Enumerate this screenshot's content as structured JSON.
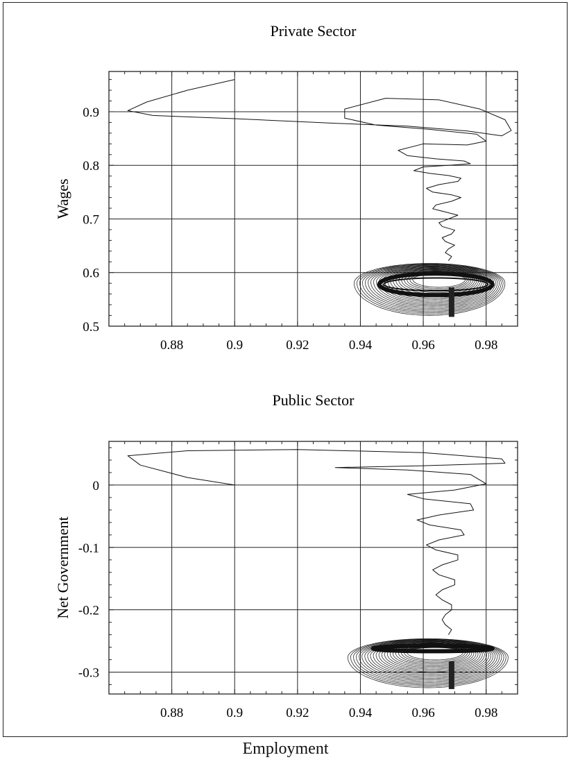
{
  "figure": {
    "xlabel": "Employment"
  },
  "chart_data": [
    {
      "type": "line",
      "title": "Private Sector",
      "xlabel": "Employment",
      "ylabel": "Wages",
      "xlim": [
        0.86,
        0.99
      ],
      "ylim": [
        0.5,
        0.975
      ],
      "xticks": [
        0.88,
        0.9,
        0.92,
        0.94,
        0.96,
        0.98
      ],
      "xtick_labels": [
        "0.88",
        "0.9",
        "0.92",
        "0.94",
        "0.96",
        "0.98"
      ],
      "yticks": [
        0.5,
        0.6,
        0.7,
        0.8,
        0.9
      ],
      "ytick_labels": [
        "0.5",
        "0.6",
        "0.7",
        "0.8",
        "0.9"
      ],
      "grid": true,
      "series": [
        {
          "values": [
            [
              0.9,
              0.96
            ],
            [
              0.885,
              0.94
            ],
            [
              0.872,
              0.918
            ],
            [
              0.866,
              0.902
            ],
            [
              0.874,
              0.893
            ],
            [
              0.9,
              0.887
            ],
            [
              0.93,
              0.879
            ],
            [
              0.955,
              0.873
            ],
            [
              0.974,
              0.864
            ],
            [
              0.985,
              0.855
            ],
            [
              0.988,
              0.865
            ],
            [
              0.986,
              0.885
            ],
            [
              0.978,
              0.905
            ],
            [
              0.965,
              0.922
            ],
            [
              0.948,
              0.925
            ],
            [
              0.935,
              0.905
            ],
            [
              0.935,
              0.888
            ],
            [
              0.945,
              0.875
            ],
            [
              0.962,
              0.867
            ],
            [
              0.977,
              0.858
            ],
            [
              0.98,
              0.845
            ],
            [
              0.974,
              0.838
            ],
            [
              0.96,
              0.84
            ],
            [
              0.952,
              0.828
            ],
            [
              0.955,
              0.818
            ],
            [
              0.964,
              0.812
            ],
            [
              0.973,
              0.808
            ],
            [
              0.975,
              0.803
            ],
            [
              0.968,
              0.8
            ],
            [
              0.96,
              0.797
            ],
            [
              0.957,
              0.79
            ],
            [
              0.962,
              0.785
            ],
            [
              0.968,
              0.781
            ],
            [
              0.972,
              0.776
            ],
            [
              0.971,
              0.77
            ],
            [
              0.965,
              0.764
            ],
            [
              0.961,
              0.757
            ],
            [
              0.963,
              0.75
            ],
            [
              0.969,
              0.745
            ],
            [
              0.972,
              0.74
            ],
            [
              0.969,
              0.733
            ],
            [
              0.964,
              0.726
            ],
            [
              0.963,
              0.719
            ],
            [
              0.967,
              0.713
            ],
            [
              0.971,
              0.707
            ],
            [
              0.968,
              0.7
            ],
            [
              0.965,
              0.693
            ],
            [
              0.966,
              0.686
            ],
            [
              0.97,
              0.679
            ],
            [
              0.969,
              0.672
            ],
            [
              0.966,
              0.665
            ],
            [
              0.967,
              0.658
            ],
            [
              0.97,
              0.651
            ],
            [
              0.968,
              0.644
            ],
            [
              0.967,
              0.637
            ],
            [
              0.969,
              0.63
            ],
            [
              0.968,
              0.622
            ]
          ]
        }
      ],
      "attractor": {
        "center": [
          0.968,
          0.578
        ],
        "x_range": [
          0.938,
          0.986
        ],
        "y_range": [
          0.52,
          0.625
        ]
      },
      "inner_cycle": {
        "x_range": [
          0.946,
          0.982
        ],
        "y_range": [
          0.558,
          0.598
        ]
      }
    },
    {
      "type": "line",
      "title": "Public Sector",
      "xlabel": "Employment",
      "ylabel": "Net Government",
      "xlim": [
        0.86,
        0.99
      ],
      "ylim": [
        -0.335,
        0.07
      ],
      "xticks": [
        0.88,
        0.9,
        0.92,
        0.94,
        0.96,
        0.98
      ],
      "xtick_labels": [
        "0.88",
        "0.9",
        "0.92",
        "0.94",
        "0.96",
        "0.98"
      ],
      "yticks": [
        0,
        -0.1,
        -0.2,
        -0.3
      ],
      "ytick_labels": [
        "0",
        "-0.1",
        "-0.2",
        "-0.3"
      ],
      "grid": true,
      "series": [
        {
          "values": [
            [
              0.9,
              0.0
            ],
            [
              0.885,
              0.012
            ],
            [
              0.87,
              0.032
            ],
            [
              0.866,
              0.047
            ],
            [
              0.885,
              0.055
            ],
            [
              0.92,
              0.057
            ],
            [
              0.96,
              0.052
            ],
            [
              0.985,
              0.042
            ],
            [
              0.986,
              0.035
            ],
            [
              0.96,
              0.031
            ],
            [
              0.932,
              0.028
            ],
            [
              0.955,
              0.024
            ],
            [
              0.975,
              0.017
            ],
            [
              0.98,
              0.002
            ],
            [
              0.97,
              -0.008
            ],
            [
              0.955,
              -0.015
            ],
            [
              0.96,
              -0.022
            ],
            [
              0.975,
              -0.03
            ],
            [
              0.976,
              -0.04
            ],
            [
              0.965,
              -0.048
            ],
            [
              0.958,
              -0.056
            ],
            [
              0.962,
              -0.064
            ],
            [
              0.972,
              -0.072
            ],
            [
              0.973,
              -0.08
            ],
            [
              0.965,
              -0.088
            ],
            [
              0.961,
              -0.096
            ],
            [
              0.964,
              -0.104
            ],
            [
              0.971,
              -0.112
            ],
            [
              0.971,
              -0.12
            ],
            [
              0.966,
              -0.128
            ],
            [
              0.963,
              -0.136
            ],
            [
              0.965,
              -0.144
            ],
            [
              0.97,
              -0.152
            ],
            [
              0.97,
              -0.16
            ],
            [
              0.966,
              -0.168
            ],
            [
              0.964,
              -0.176
            ],
            [
              0.966,
              -0.184
            ],
            [
              0.969,
              -0.192
            ],
            [
              0.969,
              -0.2
            ],
            [
              0.967,
              -0.208
            ],
            [
              0.966,
              -0.216
            ],
            [
              0.967,
              -0.224
            ],
            [
              0.969,
              -0.232
            ],
            [
              0.968,
              -0.24
            ]
          ]
        }
      ],
      "attractor": {
        "center": [
          0.966,
          -0.268
        ],
        "x_range": [
          0.936,
          0.987
        ],
        "y_range": [
          -0.325,
          -0.24
        ]
      },
      "inner_cycle": {
        "x_range": [
          0.944,
          0.982
        ],
        "y_range": [
          -0.266,
          -0.258
        ]
      }
    }
  ]
}
